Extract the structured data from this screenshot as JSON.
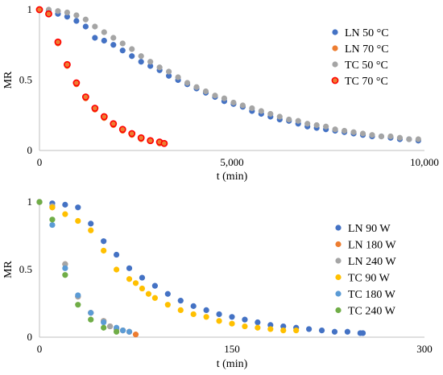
{
  "chart_data": [
    {
      "type": "scatter",
      "xlabel": "t (min)",
      "ylabel": "MR",
      "xlim": [
        0,
        10000
      ],
      "ylim": [
        0,
        1
      ],
      "xticks": [
        "0",
        "5,000",
        "10,000"
      ],
      "yticks": [
        "0",
        "0.5",
        "1"
      ],
      "legend_position": "right",
      "series": [
        {
          "name": "LN 50 °C",
          "color": "#4472c4",
          "x": [
            0,
            240,
            480,
            720,
            960,
            1200,
            1440,
            1680,
            1920,
            2160,
            2400,
            2640,
            2880,
            3120,
            3360,
            3600,
            3840,
            4080,
            4320,
            4560,
            4800,
            5040,
            5280,
            5520,
            5760,
            6000,
            6240,
            6480,
            6720,
            6960,
            7200,
            7440,
            7680,
            7920,
            8160,
            8400,
            8640,
            8880,
            9120,
            9360,
            9600,
            9840
          ],
          "y": [
            1.0,
            0.99,
            0.97,
            0.95,
            0.92,
            0.88,
            0.8,
            0.78,
            0.75,
            0.71,
            0.67,
            0.63,
            0.6,
            0.57,
            0.53,
            0.5,
            0.47,
            0.44,
            0.41,
            0.38,
            0.35,
            0.33,
            0.31,
            0.28,
            0.26,
            0.24,
            0.22,
            0.21,
            0.19,
            0.17,
            0.16,
            0.15,
            0.14,
            0.13,
            0.12,
            0.11,
            0.1,
            0.1,
            0.09,
            0.08,
            0.08,
            0.07
          ]
        },
        {
          "name": "LN 70 °C",
          "color": "#ed7d31",
          "x": [
            0,
            240,
            480,
            720,
            960,
            1200,
            1440,
            1680,
            1920,
            2160,
            2400,
            2640,
            2880,
            3120,
            3240
          ],
          "y": [
            1.0,
            0.97,
            0.76,
            0.6,
            0.47,
            0.37,
            0.29,
            0.23,
            0.18,
            0.14,
            0.11,
            0.08,
            0.07,
            0.05,
            0.05
          ]
        },
        {
          "name": "TC 50 °C",
          "color": "#a5a5a5",
          "x": [
            0,
            240,
            480,
            720,
            960,
            1200,
            1440,
            1680,
            1920,
            2160,
            2400,
            2640,
            2880,
            3120,
            3360,
            3600,
            3840,
            4080,
            4320,
            4560,
            4800,
            5040,
            5280,
            5520,
            5760,
            6000,
            6240,
            6480,
            6720,
            6960,
            7200,
            7440,
            7680,
            7920,
            8160,
            8400,
            8640,
            8880,
            9120,
            9360,
            9600,
            9840
          ],
          "y": [
            1.0,
            1.0,
            0.99,
            0.98,
            0.96,
            0.93,
            0.88,
            0.84,
            0.8,
            0.76,
            0.72,
            0.67,
            0.63,
            0.59,
            0.56,
            0.52,
            0.48,
            0.45,
            0.42,
            0.39,
            0.37,
            0.34,
            0.32,
            0.3,
            0.28,
            0.26,
            0.24,
            0.22,
            0.21,
            0.19,
            0.18,
            0.17,
            0.15,
            0.14,
            0.13,
            0.12,
            0.11,
            0.1,
            0.1,
            0.09,
            0.08,
            0.08
          ]
        },
        {
          "name": "TC 70 °C",
          "color": "#ff0000",
          "fill": "#ed7d31",
          "x": [
            0,
            240,
            480,
            720,
            960,
            1200,
            1440,
            1680,
            1920,
            2160,
            2400,
            2640,
            2880,
            3120,
            3240
          ],
          "y": [
            1.0,
            0.97,
            0.77,
            0.61,
            0.48,
            0.38,
            0.3,
            0.24,
            0.19,
            0.15,
            0.12,
            0.09,
            0.07,
            0.06,
            0.05
          ]
        }
      ]
    },
    {
      "type": "scatter",
      "xlabel": "t (min)",
      "ylabel": "MR",
      "xlim": [
        0,
        300
      ],
      "ylim": [
        0,
        1
      ],
      "xticks": [
        "0",
        "150",
        "300"
      ],
      "yticks": [
        "0",
        "0.5",
        "1"
      ],
      "legend_position": "right",
      "series": [
        {
          "name": "LN 90 W",
          "color": "#4472c4",
          "x": [
            0,
            10,
            20,
            30,
            40,
            50,
            60,
            70,
            80,
            90,
            100,
            110,
            120,
            130,
            140,
            150,
            160,
            170,
            180,
            190,
            200,
            210,
            220,
            230,
            240,
            250,
            252
          ],
          "y": [
            1.0,
            0.99,
            0.98,
            0.96,
            0.84,
            0.71,
            0.61,
            0.51,
            0.44,
            0.38,
            0.32,
            0.27,
            0.23,
            0.2,
            0.17,
            0.15,
            0.13,
            0.11,
            0.09,
            0.08,
            0.07,
            0.06,
            0.05,
            0.04,
            0.04,
            0.03,
            0.03
          ]
        },
        {
          "name": "LN 180 W",
          "color": "#ed7d31",
          "x": [
            0,
            10,
            20,
            30,
            40,
            50,
            55,
            60,
            65,
            70,
            75
          ],
          "y": [
            1.0,
            0.96,
            0.54,
            0.3,
            0.18,
            0.12,
            0.08,
            0.06,
            0.05,
            0.04,
            0.02
          ]
        },
        {
          "name": "LN 240 W",
          "color": "#a5a5a5",
          "x": [
            0,
            10,
            20,
            30,
            40,
            50,
            55,
            60,
            65
          ],
          "y": [
            1.0,
            0.97,
            0.54,
            0.3,
            0.18,
            0.12,
            0.08,
            0.06,
            0.05
          ]
        },
        {
          "name": "TC 90 W",
          "color": "#ffc000",
          "x": [
            0,
            10,
            20,
            30,
            40,
            50,
            60,
            70,
            75,
            80,
            85,
            90,
            100,
            110,
            120,
            130,
            140,
            150,
            160,
            170,
            180,
            190,
            200
          ],
          "y": [
            1.0,
            0.96,
            0.91,
            0.86,
            0.79,
            0.64,
            0.5,
            0.43,
            0.4,
            0.36,
            0.32,
            0.29,
            0.24,
            0.2,
            0.17,
            0.15,
            0.12,
            0.1,
            0.08,
            0.07,
            0.06,
            0.05,
            0.05
          ]
        },
        {
          "name": "TC 180 W",
          "color": "#5b9bd5",
          "x": [
            0,
            10,
            20,
            30,
            40,
            50,
            60,
            65,
            70
          ],
          "y": [
            1.0,
            0.83,
            0.51,
            0.31,
            0.18,
            0.11,
            0.07,
            0.05,
            0.04
          ]
        },
        {
          "name": "TC 240 W",
          "color": "#70ad47",
          "x": [
            0,
            10,
            20,
            30,
            40,
            50,
            60
          ],
          "y": [
            1.0,
            0.87,
            0.46,
            0.24,
            0.13,
            0.07,
            0.04
          ]
        }
      ]
    }
  ]
}
